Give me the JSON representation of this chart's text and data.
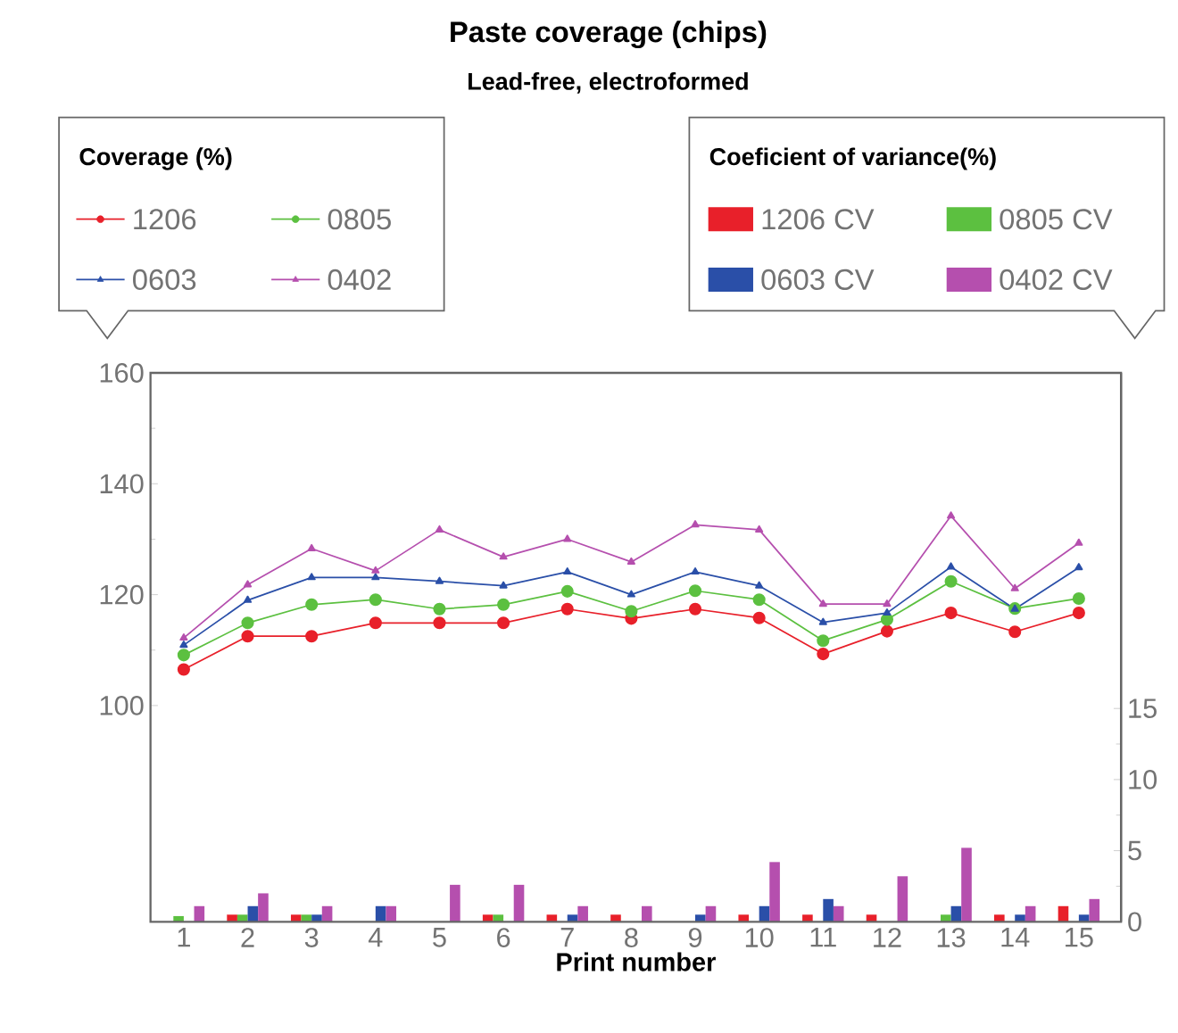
{
  "chart_data": {
    "type": "line",
    "title": "Paste coverage (chips)",
    "subtitle": "Lead-free, electroformed",
    "xlabel": "Print number",
    "legend_title": "Coverage (%)",
    "annotations": [
      "Coeficient of variance(%)"
    ],
    "categories": [
      "1",
      "2",
      "3",
      "4",
      "5",
      "6",
      "7",
      "8",
      "9",
      "10",
      "11",
      "12",
      "13",
      "14",
      "15"
    ],
    "ylim": [
      61,
      160
    ],
    "yticks": [
      100,
      120,
      140,
      160
    ],
    "y2lim": [
      0,
      38.6
    ],
    "y2ticks": [
      0,
      5,
      10,
      15
    ],
    "legend": "top",
    "series": [
      {
        "name": "1206",
        "color": "#e8202a",
        "marker": "circle",
        "values": [
          106.5,
          112.5,
          112.5,
          114.9,
          114.9,
          114.9,
          117.4,
          115.7,
          117.4,
          115.8,
          109.3,
          113.4,
          116.7,
          113.3,
          116.7
        ]
      },
      {
        "name": "0805",
        "color": "#5cc040",
        "marker": "circle",
        "values": [
          109.1,
          114.9,
          118.2,
          119.1,
          117.4,
          118.2,
          120.6,
          117.0,
          120.7,
          119.1,
          111.7,
          115.5,
          122.4,
          117.5,
          119.3
        ]
      },
      {
        "name": "0603",
        "color": "#2a4fa8",
        "marker": "triangle",
        "values": [
          110.9,
          119.0,
          123.1,
          123.1,
          122.4,
          121.6,
          124.1,
          120.0,
          124.1,
          121.6,
          115.0,
          116.7,
          125.0,
          117.4,
          124.9
        ]
      },
      {
        "name": "0402",
        "color": "#b54fae",
        "marker": "triangle",
        "values": [
          112.2,
          121.8,
          128.3,
          124.3,
          131.7,
          126.8,
          130.0,
          125.9,
          132.6,
          131.7,
          118.3,
          118.3,
          134.2,
          121.1,
          129.3
        ]
      },
      {
        "name": "1206 CV",
        "type": "bar",
        "axis": "y2",
        "color": "#e8202a",
        "values": [
          0,
          0.5,
          0.5,
          0,
          0,
          0.5,
          0.5,
          0.5,
          0,
          0.5,
          0.5,
          0.5,
          0,
          0.5,
          1.1
        ]
      },
      {
        "name": "0805 CV",
        "type": "bar",
        "axis": "y2",
        "color": "#5cc040",
        "values": [
          0.4,
          0.5,
          0.5,
          0,
          0,
          0.5,
          0,
          0,
          0,
          0,
          0,
          0,
          0.5,
          0,
          0
        ]
      },
      {
        "name": "0603 CV",
        "type": "bar",
        "axis": "y2",
        "color": "#2a4fa8",
        "values": [
          0,
          1.1,
          0.5,
          1.1,
          0,
          0,
          0.5,
          0,
          0.5,
          1.1,
          1.6,
          0,
          1.1,
          0.5,
          0.5
        ]
      },
      {
        "name": "0402 CV",
        "type": "bar",
        "axis": "y2",
        "color": "#b54fae",
        "values": [
          1.1,
          2.0,
          1.1,
          1.1,
          2.6,
          2.6,
          1.1,
          1.1,
          1.1,
          4.2,
          1.1,
          3.2,
          5.2,
          1.1,
          1.6
        ]
      }
    ]
  }
}
